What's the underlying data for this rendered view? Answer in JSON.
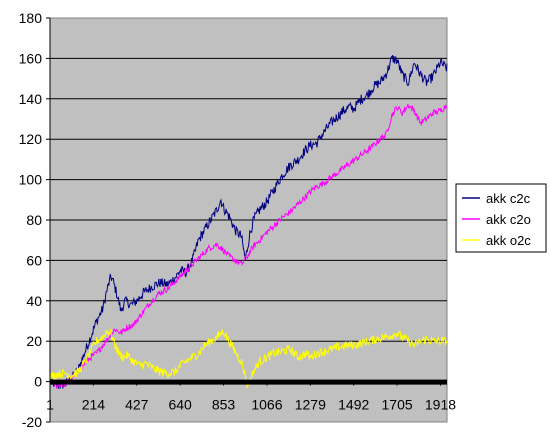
{
  "chart_data": {
    "type": "line",
    "title": "",
    "xlabel": "",
    "ylabel": "",
    "ylim": [
      -20,
      180
    ],
    "yticks": [
      -20,
      0,
      20,
      40,
      60,
      80,
      100,
      120,
      140,
      160,
      180
    ],
    "xlim": [
      1,
      1950
    ],
    "xticks": [
      1,
      214,
      427,
      640,
      853,
      1066,
      1279,
      1492,
      1705,
      1918
    ],
    "grid": true,
    "legend_position": "right",
    "plot_background": "#c0c0c0",
    "series": [
      {
        "name": "akk c2c",
        "color": "#000080",
        "points": [
          [
            1,
            0
          ],
          [
            40,
            -2
          ],
          [
            80,
            -1
          ],
          [
            110,
            2
          ],
          [
            140,
            6
          ],
          [
            170,
            14
          ],
          [
            200,
            22
          ],
          [
            230,
            30
          ],
          [
            260,
            36
          ],
          [
            280,
            45
          ],
          [
            300,
            52
          ],
          [
            310,
            50
          ],
          [
            330,
            43
          ],
          [
            350,
            35
          ],
          [
            370,
            40
          ],
          [
            400,
            38
          ],
          [
            427,
            40
          ],
          [
            460,
            44
          ],
          [
            500,
            47
          ],
          [
            540,
            49
          ],
          [
            580,
            48
          ],
          [
            620,
            52
          ],
          [
            640,
            55
          ],
          [
            670,
            54
          ],
          [
            700,
            60
          ],
          [
            730,
            70
          ],
          [
            760,
            75
          ],
          [
            790,
            80
          ],
          [
            820,
            85
          ],
          [
            840,
            90
          ],
          [
            853,
            86
          ],
          [
            880,
            82
          ],
          [
            910,
            75
          ],
          [
            940,
            72
          ],
          [
            960,
            60
          ],
          [
            980,
            72
          ],
          [
            1000,
            80
          ],
          [
            1030,
            85
          ],
          [
            1066,
            89
          ],
          [
            1100,
            95
          ],
          [
            1140,
            102
          ],
          [
            1180,
            107
          ],
          [
            1220,
            110
          ],
          [
            1250,
            114
          ],
          [
            1279,
            117
          ],
          [
            1310,
            118
          ],
          [
            1350,
            124
          ],
          [
            1380,
            128
          ],
          [
            1410,
            131
          ],
          [
            1440,
            134
          ],
          [
            1470,
            136
          ],
          [
            1492,
            135
          ],
          [
            1530,
            140
          ],
          [
            1560,
            142
          ],
          [
            1590,
            146
          ],
          [
            1620,
            148
          ],
          [
            1650,
            152
          ],
          [
            1680,
            160
          ],
          [
            1705,
            159
          ],
          [
            1730,
            152
          ],
          [
            1760,
            148
          ],
          [
            1790,
            158
          ],
          [
            1820,
            152
          ],
          [
            1850,
            148
          ],
          [
            1880,
            151
          ],
          [
            1918,
            158
          ],
          [
            1950,
            155
          ]
        ]
      },
      {
        "name": "akk c2o",
        "color": "#ff00ff",
        "points": [
          [
            1,
            0
          ],
          [
            40,
            -2
          ],
          [
            80,
            -1
          ],
          [
            110,
            2
          ],
          [
            140,
            5
          ],
          [
            170,
            9
          ],
          [
            200,
            12
          ],
          [
            230,
            14
          ],
          [
            260,
            18
          ],
          [
            290,
            22
          ],
          [
            320,
            26
          ],
          [
            350,
            24
          ],
          [
            380,
            27
          ],
          [
            410,
            28
          ],
          [
            440,
            32
          ],
          [
            470,
            36
          ],
          [
            500,
            40
          ],
          [
            540,
            44
          ],
          [
            580,
            46
          ],
          [
            620,
            50
          ],
          [
            660,
            54
          ],
          [
            700,
            58
          ],
          [
            740,
            62
          ],
          [
            780,
            66
          ],
          [
            820,
            68
          ],
          [
            853,
            65
          ],
          [
            880,
            62
          ],
          [
            910,
            60
          ],
          [
            940,
            58
          ],
          [
            970,
            62
          ],
          [
            1000,
            67
          ],
          [
            1030,
            70
          ],
          [
            1066,
            74
          ],
          [
            1100,
            77
          ],
          [
            1140,
            81
          ],
          [
            1180,
            84
          ],
          [
            1220,
            88
          ],
          [
            1260,
            92
          ],
          [
            1300,
            96
          ],
          [
            1340,
            98
          ],
          [
            1380,
            101
          ],
          [
            1420,
            104
          ],
          [
            1460,
            107
          ],
          [
            1500,
            110
          ],
          [
            1540,
            113
          ],
          [
            1580,
            116
          ],
          [
            1620,
            120
          ],
          [
            1650,
            122
          ],
          [
            1680,
            132
          ],
          [
            1705,
            136
          ],
          [
            1730,
            133
          ],
          [
            1760,
            137
          ],
          [
            1790,
            134
          ],
          [
            1820,
            128
          ],
          [
            1850,
            130
          ],
          [
            1880,
            133
          ],
          [
            1918,
            134
          ],
          [
            1950,
            137
          ]
        ]
      },
      {
        "name": "akk o2c",
        "color": "#ffff00",
        "points": [
          [
            1,
            2
          ],
          [
            40,
            4
          ],
          [
            80,
            4
          ],
          [
            110,
            3
          ],
          [
            140,
            5
          ],
          [
            170,
            9
          ],
          [
            200,
            15
          ],
          [
            230,
            20
          ],
          [
            260,
            22
          ],
          [
            280,
            25
          ],
          [
            300,
            24
          ],
          [
            320,
            18
          ],
          [
            340,
            14
          ],
          [
            360,
            12
          ],
          [
            380,
            13
          ],
          [
            410,
            10
          ],
          [
            440,
            8
          ],
          [
            470,
            9
          ],
          [
            500,
            7
          ],
          [
            540,
            5
          ],
          [
            580,
            4
          ],
          [
            620,
            5
          ],
          [
            640,
            8
          ],
          [
            670,
            10
          ],
          [
            700,
            12
          ],
          [
            730,
            14
          ],
          [
            760,
            18
          ],
          [
            790,
            20
          ],
          [
            820,
            22
          ],
          [
            853,
            25
          ],
          [
            880,
            20
          ],
          [
            910,
            15
          ],
          [
            940,
            10
          ],
          [
            960,
            3
          ],
          [
            970,
            -2
          ],
          [
            980,
            0
          ],
          [
            1000,
            5
          ],
          [
            1030,
            10
          ],
          [
            1066,
            12
          ],
          [
            1100,
            14
          ],
          [
            1140,
            15
          ],
          [
            1180,
            16
          ],
          [
            1220,
            12
          ],
          [
            1260,
            14
          ],
          [
            1279,
            12
          ],
          [
            1310,
            14
          ],
          [
            1350,
            15
          ],
          [
            1380,
            16
          ],
          [
            1420,
            17
          ],
          [
            1460,
            18
          ],
          [
            1492,
            18
          ],
          [
            1530,
            19
          ],
          [
            1560,
            20
          ],
          [
            1600,
            21
          ],
          [
            1640,
            22
          ],
          [
            1680,
            23
          ],
          [
            1705,
            24
          ],
          [
            1730,
            22
          ],
          [
            1760,
            20
          ],
          [
            1790,
            18
          ],
          [
            1820,
            20
          ],
          [
            1850,
            21
          ],
          [
            1880,
            20
          ],
          [
            1918,
            20
          ],
          [
            1950,
            20
          ]
        ]
      }
    ]
  }
}
